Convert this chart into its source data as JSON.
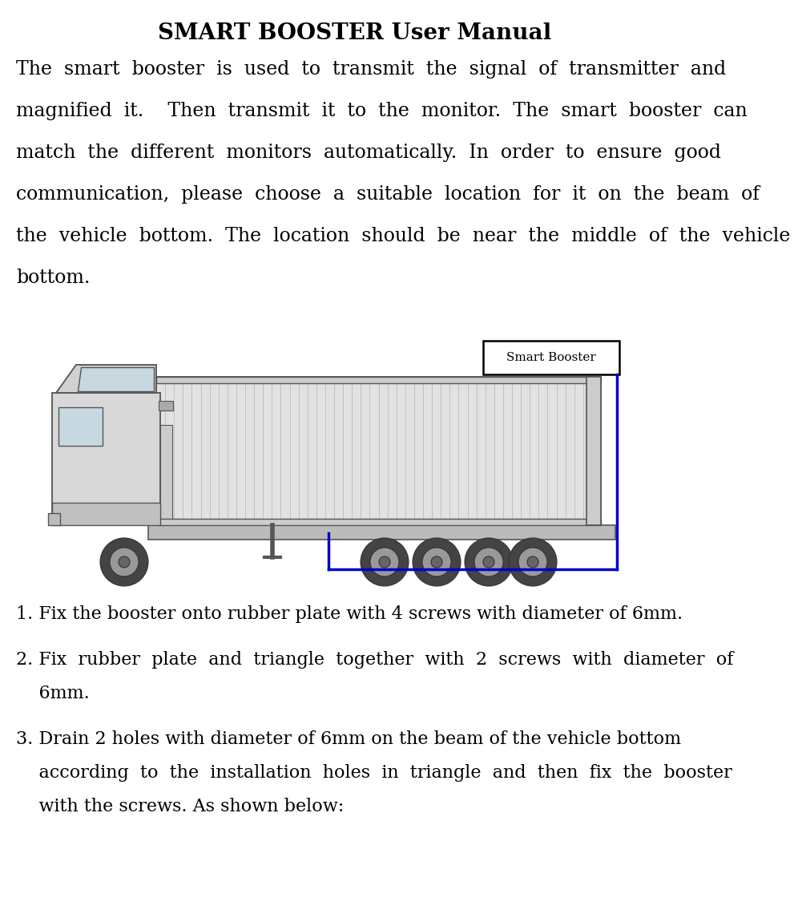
{
  "title": "SMART BOOSTER User Manual",
  "background_color": "#ffffff",
  "text_color": "#000000",
  "blue_color": "#0000cc",
  "label_text": "Smart Booster",
  "p1_lines": [
    "The  smart  booster  is  used  to  transmit  the  signal  of  transmitter  and",
    "magnified  it.    Then  transmit  it  to  the  monitor.  The  smart  booster  can",
    "match  the  different  monitors  automatically.  In  order  to  ensure  good",
    "communication,  please  choose  a  suitable  location  for  it  on  the  beam  of",
    "the  vehicle  bottom.  The  location  should  be  near  the  middle  of  the  vehicle",
    "bottom."
  ],
  "item1": "1. Fix the booster onto rubber plate with 4 screws with diameter of 6mm.",
  "item2a": "2. Fix  rubber  plate  and  triangle  together  with  2  screws  with  diameter  of",
  "item2b": "    6mm.",
  "item3a": "3. Drain 2 holes with diameter of 6mm on the beam of the vehicle bottom",
  "item3b": "    according  to  the  installation  holes  in  triangle  and  then  fix  the  booster",
  "item3c": "    with the screws. As shown below:"
}
